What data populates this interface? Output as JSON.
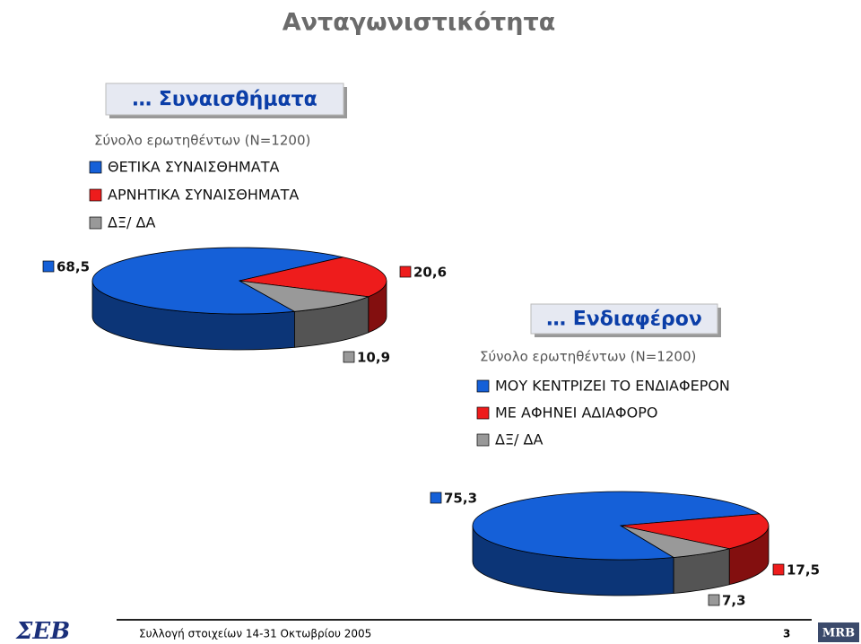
{
  "page": {
    "title": "Ανταγωνιστικότητα",
    "footer": "Συλλογή στοιχείων 14-31 Οκτωβρίου 2005",
    "page_number": "3",
    "logo_left": "ΣΕΒ",
    "logo_right": "MRB"
  },
  "chart_data": [
    {
      "type": "pie",
      "title": "… Συναισθήματα",
      "subtitle": "Σύνολο ερωτηθέντων (N=1200)",
      "categories": [
        "ΘΕΤΙΚΑ ΣΥΝΑΙΣΘΗΜΑΤΑ",
        "ΑΡΝΗΤΙΚΑ ΣΥΝΑΙΣΘΗΜΑΤΑ",
        "ΔΞ/ ΔΑ"
      ],
      "values": [
        68.5,
        20.6,
        10.9
      ],
      "value_labels": [
        "68,5",
        "20,6",
        "10,9"
      ],
      "colors": [
        "#1560d8",
        "#ee1c1c",
        "#999999"
      ]
    },
    {
      "type": "pie",
      "title": "… Ενδιαφέρον",
      "subtitle": "Σύνολο ερωτηθέντων (N=1200)",
      "categories": [
        "ΜΟΥ ΚΕΝΤΡΙΖΕΙ ΤΟ ΕΝΔΙΑΦΕΡΟΝ",
        "ΜΕ ΑΦΗΝΕΙ ΑΔΙΑΦΟΡΟ",
        "ΔΞ/ ΔΑ"
      ],
      "values": [
        75.3,
        17.5,
        7.3
      ],
      "value_labels": [
        "75,3",
        "17,5",
        "7,3"
      ],
      "colors": [
        "#1560d8",
        "#ee1c1c",
        "#999999"
      ]
    }
  ]
}
